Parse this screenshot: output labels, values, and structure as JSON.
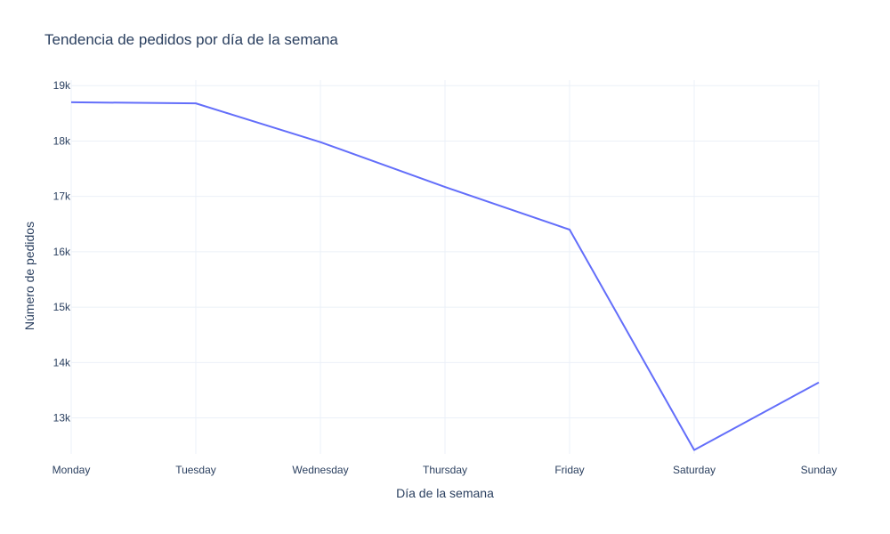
{
  "chart_data": {
    "type": "line",
    "title": "Tendencia de pedidos por día de la semana",
    "xlabel": "Día de la semana",
    "ylabel": "Número de pedidos",
    "categories": [
      "Monday",
      "Tuesday",
      "Wednesday",
      "Thursday",
      "Friday",
      "Saturday",
      "Sunday"
    ],
    "series": [
      {
        "values": [
          18700,
          18680,
          17980,
          17170,
          16400,
          12420,
          13640
        ]
      }
    ],
    "ylim": [
      12350,
      19100
    ],
    "yticks": [
      13000,
      14000,
      15000,
      16000,
      17000,
      18000,
      19000
    ],
    "ytick_labels": [
      "13k",
      "14k",
      "15k",
      "16k",
      "17k",
      "18k",
      "19k"
    ],
    "line_color": "#636efa",
    "grid_color": "#ebf0f8",
    "grid": true,
    "legend": false
  }
}
